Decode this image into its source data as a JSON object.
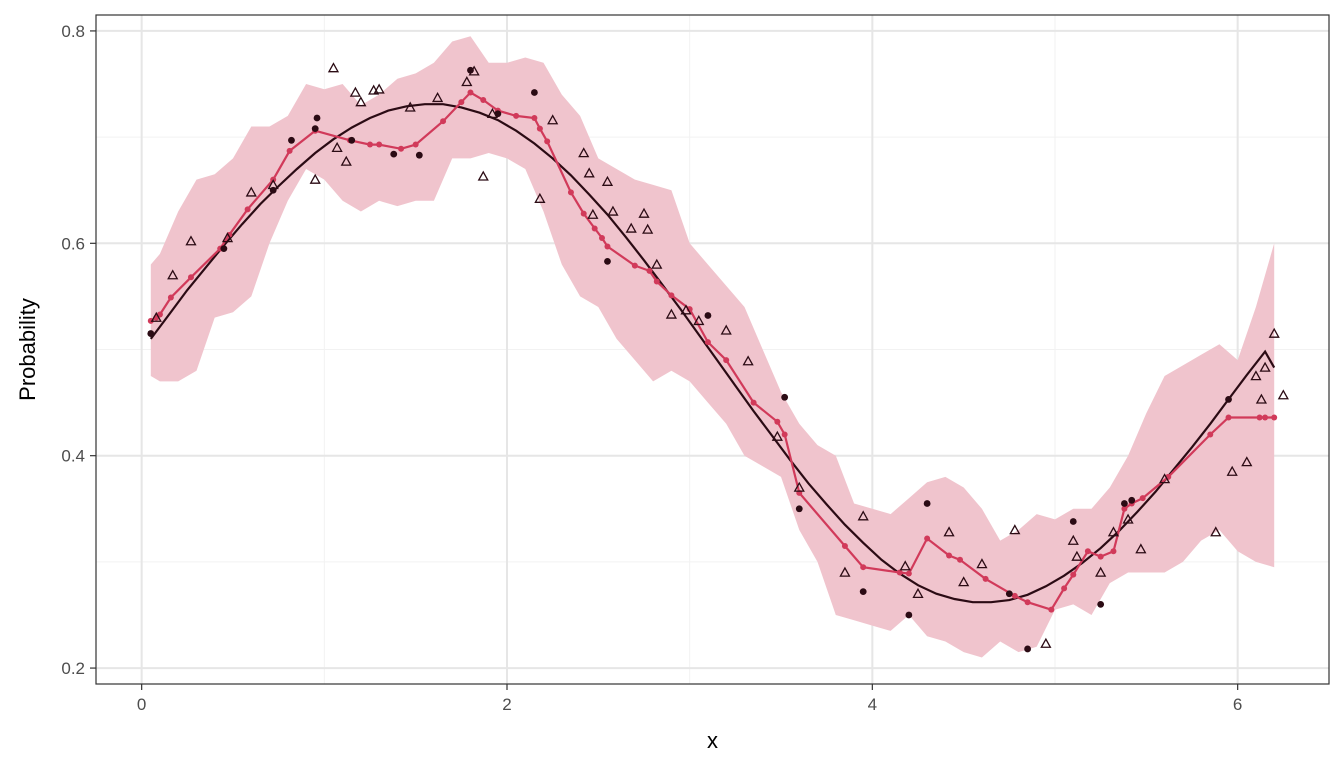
{
  "chart_data": {
    "type": "scatter",
    "xlabel": "x",
    "ylabel": "Probability",
    "xlim": [
      -0.25,
      6.5
    ],
    "ylim": [
      0.185,
      0.815
    ],
    "x_ticks": [
      0,
      2,
      4,
      6
    ],
    "x_tick_labels": [
      "0",
      "2",
      "4",
      "6"
    ],
    "x_minor_ticks": [
      1,
      3,
      5
    ],
    "y_ticks": [
      0.2,
      0.4,
      0.6,
      0.8
    ],
    "y_tick_labels": [
      "0.2",
      "0.4",
      "0.6",
      "0.8"
    ],
    "y_minor_ticks": [
      0.3,
      0.5,
      0.7
    ],
    "grid": true,
    "legend": "none",
    "colors": {
      "truth_line": "#2b0b14",
      "estimate_line": "#d13a5a",
      "ribbon": "#f0c4cd",
      "dots": "#2b0b14",
      "triangles": "#2b0b14",
      "grid_major": "#e6e6e6",
      "grid_minor": "#f2f2f2",
      "panel_border": "#333333"
    },
    "series": [
      {
        "kind": "ribbon",
        "x": [
          0.05,
          0.1,
          0.2,
          0.3,
          0.4,
          0.5,
          0.6,
          0.7,
          0.8,
          0.9,
          1.0,
          1.1,
          1.2,
          1.3,
          1.4,
          1.5,
          1.6,
          1.7,
          1.8,
          1.9,
          2.0,
          2.1,
          2.2,
          2.3,
          2.4,
          2.5,
          2.6,
          2.7,
          2.8,
          2.9,
          3.0,
          3.1,
          3.2,
          3.3,
          3.4,
          3.5,
          3.6,
          3.7,
          3.8,
          3.9,
          4.0,
          4.1,
          4.2,
          4.3,
          4.4,
          4.5,
          4.6,
          4.7,
          4.8,
          4.9,
          5.0,
          5.1,
          5.2,
          5.3,
          5.4,
          5.5,
          5.6,
          5.7,
          5.8,
          5.9,
          6.0,
          6.1,
          6.2
        ],
        "low": [
          0.475,
          0.47,
          0.47,
          0.48,
          0.53,
          0.535,
          0.55,
          0.6,
          0.64,
          0.67,
          0.66,
          0.64,
          0.63,
          0.64,
          0.635,
          0.64,
          0.64,
          0.68,
          0.68,
          0.685,
          0.68,
          0.67,
          0.63,
          0.58,
          0.55,
          0.54,
          0.51,
          0.49,
          0.47,
          0.48,
          0.47,
          0.45,
          0.43,
          0.4,
          0.39,
          0.38,
          0.33,
          0.3,
          0.25,
          0.245,
          0.24,
          0.235,
          0.25,
          0.23,
          0.225,
          0.215,
          0.21,
          0.225,
          0.215,
          0.22,
          0.255,
          0.26,
          0.25,
          0.28,
          0.29,
          0.29,
          0.29,
          0.3,
          0.32,
          0.33,
          0.31,
          0.3,
          0.295
        ],
        "high": [
          0.58,
          0.59,
          0.63,
          0.66,
          0.665,
          0.68,
          0.71,
          0.71,
          0.72,
          0.75,
          0.745,
          0.75,
          0.73,
          0.74,
          0.755,
          0.76,
          0.77,
          0.79,
          0.795,
          0.77,
          0.77,
          0.775,
          0.77,
          0.74,
          0.72,
          0.68,
          0.67,
          0.66,
          0.655,
          0.65,
          0.6,
          0.58,
          0.56,
          0.54,
          0.5,
          0.46,
          0.43,
          0.41,
          0.4,
          0.355,
          0.35,
          0.345,
          0.36,
          0.375,
          0.38,
          0.37,
          0.35,
          0.32,
          0.33,
          0.345,
          0.34,
          0.35,
          0.35,
          0.37,
          0.4,
          0.44,
          0.475,
          0.485,
          0.495,
          0.505,
          0.49,
          0.54,
          0.6
        ]
      },
      {
        "kind": "truth_line",
        "x": [
          0.05,
          0.15,
          0.25,
          0.35,
          0.45,
          0.55,
          0.65,
          0.75,
          0.85,
          0.95,
          1.05,
          1.15,
          1.25,
          1.35,
          1.45,
          1.55,
          1.65,
          1.75,
          1.85,
          1.95,
          2.05,
          2.15,
          2.25,
          2.35,
          2.45,
          2.55,
          2.65,
          2.75,
          2.85,
          2.95,
          3.05,
          3.15,
          3.25,
          3.35,
          3.45,
          3.55,
          3.65,
          3.75,
          3.85,
          3.95,
          4.05,
          4.15,
          4.25,
          4.35,
          4.45,
          4.55,
          4.65,
          4.75,
          4.85,
          4.95,
          5.05,
          5.15,
          5.25,
          5.35,
          5.45,
          5.55,
          5.65,
          5.75,
          5.85,
          5.95,
          6.05,
          6.15,
          6.2
        ],
        "y": [
          0.51,
          0.533,
          0.556,
          0.577,
          0.598,
          0.618,
          0.637,
          0.654,
          0.67,
          0.685,
          0.698,
          0.709,
          0.718,
          0.725,
          0.729,
          0.731,
          0.731,
          0.728,
          0.723,
          0.716,
          0.706,
          0.694,
          0.68,
          0.664,
          0.646,
          0.627,
          0.606,
          0.584,
          0.561,
          0.538,
          0.514,
          0.49,
          0.466,
          0.442,
          0.419,
          0.396,
          0.374,
          0.354,
          0.335,
          0.318,
          0.302,
          0.289,
          0.278,
          0.27,
          0.265,
          0.262,
          0.262,
          0.264,
          0.269,
          0.277,
          0.287,
          0.299,
          0.313,
          0.329,
          0.347,
          0.366,
          0.387,
          0.408,
          0.43,
          0.453,
          0.476,
          0.498,
          0.483
        ]
      },
      {
        "kind": "estimate_line",
        "x": [
          0.05,
          0.08,
          0.1,
          0.16,
          0.27,
          0.43,
          0.48,
          0.58,
          0.72,
          0.81,
          0.95,
          1.14,
          1.25,
          1.3,
          1.42,
          1.5,
          1.65,
          1.75,
          1.8,
          1.87,
          1.95,
          2.05,
          2.15,
          2.18,
          2.22,
          2.35,
          2.42,
          2.48,
          2.52,
          2.55,
          2.7,
          2.78,
          2.82,
          2.9,
          3.0,
          3.1,
          3.2,
          3.35,
          3.48,
          3.52,
          3.6,
          3.85,
          3.95,
          4.15,
          4.2,
          4.3,
          4.42,
          4.48,
          4.62,
          4.78,
          4.85,
          4.98,
          5.05,
          5.1,
          5.18,
          5.25,
          5.32,
          5.38,
          5.42,
          5.48,
          5.62,
          5.85,
          5.95,
          6.12,
          6.15,
          6.2
        ],
        "y": [
          0.527,
          0.53,
          0.533,
          0.549,
          0.568,
          0.595,
          0.608,
          0.632,
          0.66,
          0.687,
          0.706,
          0.697,
          0.693,
          0.693,
          0.689,
          0.693,
          0.715,
          0.733,
          0.742,
          0.735,
          0.725,
          0.72,
          0.718,
          0.708,
          0.696,
          0.648,
          0.628,
          0.614,
          0.605,
          0.597,
          0.579,
          0.574,
          0.564,
          0.551,
          0.538,
          0.507,
          0.49,
          0.45,
          0.432,
          0.42,
          0.365,
          0.315,
          0.295,
          0.29,
          0.289,
          0.322,
          0.306,
          0.302,
          0.284,
          0.268,
          0.262,
          0.255,
          0.275,
          0.288,
          0.31,
          0.305,
          0.31,
          0.35,
          0.355,
          0.36,
          0.38,
          0.42,
          0.436,
          0.436,
          0.436,
          0.436
        ]
      },
      {
        "kind": "dots",
        "x": [
          0.05,
          0.45,
          0.72,
          0.82,
          0.95,
          0.96,
          1.15,
          1.38,
          1.52,
          1.8,
          1.95,
          2.15,
          2.55,
          3.1,
          3.52,
          3.6,
          3.95,
          4.2,
          4.3,
          4.75,
          4.85,
          5.1,
          5.25,
          5.38,
          5.42,
          5.95
        ],
        "y": [
          0.515,
          0.595,
          0.65,
          0.697,
          0.708,
          0.718,
          0.697,
          0.684,
          0.683,
          0.763,
          0.722,
          0.742,
          0.583,
          0.532,
          0.455,
          0.35,
          0.272,
          0.25,
          0.355,
          0.27,
          0.218,
          0.338,
          0.26,
          0.355,
          0.358,
          0.453
        ]
      },
      {
        "kind": "triangles",
        "x": [
          0.08,
          0.17,
          0.27,
          0.47,
          0.6,
          0.72,
          0.95,
          1.05,
          1.07,
          1.12,
          1.17,
          1.2,
          1.27,
          1.3,
          1.47,
          1.62,
          1.78,
          1.82,
          1.87,
          1.92,
          2.18,
          2.25,
          2.42,
          2.45,
          2.47,
          2.55,
          2.58,
          2.68,
          2.75,
          2.77,
          2.82,
          2.9,
          2.98,
          3.05,
          3.2,
          3.32,
          3.48,
          3.6,
          3.85,
          3.95,
          4.18,
          4.25,
          4.42,
          4.5,
          4.6,
          4.78,
          4.95,
          5.1,
          5.12,
          5.25,
          5.32,
          5.4,
          5.47,
          5.6,
          5.88,
          5.97,
          6.05,
          6.1,
          6.13,
          6.15,
          6.2,
          6.25
        ],
        "y": [
          0.53,
          0.57,
          0.602,
          0.605,
          0.648,
          0.655,
          0.66,
          0.765,
          0.69,
          0.677,
          0.742,
          0.733,
          0.744,
          0.745,
          0.728,
          0.737,
          0.752,
          0.762,
          0.663,
          0.722,
          0.642,
          0.716,
          0.685,
          0.666,
          0.627,
          0.658,
          0.63,
          0.614,
          0.628,
          0.613,
          0.58,
          0.533,
          0.537,
          0.527,
          0.518,
          0.489,
          0.418,
          0.37,
          0.29,
          0.343,
          0.296,
          0.27,
          0.328,
          0.281,
          0.298,
          0.33,
          0.223,
          0.32,
          0.305,
          0.29,
          0.328,
          0.34,
          0.312,
          0.378,
          0.328,
          0.385,
          0.394,
          0.475,
          0.453,
          0.483,
          0.515,
          0.457
        ]
      }
    ]
  }
}
